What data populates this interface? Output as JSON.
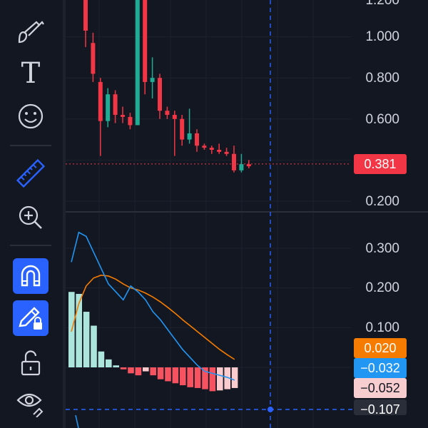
{
  "toolbar": {
    "tools": [
      {
        "name": "brush-tool",
        "icon": "brush-icon",
        "active": false
      },
      {
        "name": "text-tool",
        "icon": "text-icon",
        "active": false
      },
      {
        "name": "emoji-tool",
        "icon": "emoji-icon",
        "active": false
      },
      {
        "name": "measure-tool",
        "icon": "ruler-icon",
        "active": false
      },
      {
        "name": "zoom-tool",
        "icon": "zoom-in-icon",
        "active": false
      },
      {
        "name": "magnet-mode",
        "icon": "magnet-icon",
        "active": true
      },
      {
        "name": "lock-drawings",
        "icon": "pencil-lock-icon",
        "active": true
      },
      {
        "name": "unlock-all",
        "icon": "unlock-icon",
        "active": false
      },
      {
        "name": "hide-drawings",
        "icon": "eye-icon",
        "active": false
      }
    ],
    "text_glyph": "T"
  },
  "price_axis": {
    "labels": [
      "1.200",
      "1.000",
      "0.800",
      "0.600",
      "0.200"
    ],
    "current_price": "0.381"
  },
  "macd_axis": {
    "labels": [
      "0.300",
      "0.200",
      "0.100"
    ],
    "tags": [
      {
        "value": "0.020",
        "color": "#f57c00",
        "text_color": "#ffffff"
      },
      {
        "value": "−0.032",
        "color": "#2196f3",
        "text_color": "#ffffff"
      },
      {
        "value": "−0.052",
        "color": "#f8cdd0",
        "text_color": "#131722"
      },
      {
        "value": "−0.107",
        "color": "#2a2e39",
        "text_color": "#ffffff"
      }
    ]
  },
  "colors": {
    "up": "#22ab94",
    "down": "#f23645",
    "macd_line": "#2196f3",
    "signal_line": "#f57c00",
    "crosshair": "#2962ff",
    "price_line": "#f23645"
  },
  "chart_data": [
    {
      "type": "candlestick",
      "y_unit": "price",
      "ylim": [
        0.2,
        1.2
      ],
      "candles": [
        {
          "o": 1.2,
          "h": 1.22,
          "c": 1.03,
          "l": 0.95
        },
        {
          "o": 0.97,
          "h": 1.02,
          "c": 0.82,
          "l": 0.78
        },
        {
          "o": 0.78,
          "h": 0.8,
          "c": 0.59,
          "l": 0.42
        },
        {
          "o": 0.59,
          "h": 0.75,
          "c": 0.72,
          "l": 0.56
        },
        {
          "o": 0.72,
          "h": 0.74,
          "c": 0.62,
          "l": 0.58
        },
        {
          "o": 0.62,
          "h": 0.66,
          "c": 0.61,
          "l": 0.58
        },
        {
          "o": 0.61,
          "h": 0.63,
          "c": 0.57,
          "l": 0.55
        },
        {
          "o": 0.57,
          "h": 1.23,
          "c": 1.2,
          "l": 0.57
        },
        {
          "o": 1.2,
          "h": 1.24,
          "c": 0.78,
          "l": 0.72
        },
        {
          "o": 0.78,
          "h": 0.9,
          "c": 0.8,
          "l": 0.7
        },
        {
          "o": 0.8,
          "h": 0.82,
          "c": 0.64,
          "l": 0.6
        },
        {
          "o": 0.64,
          "h": 0.66,
          "c": 0.62,
          "l": 0.6
        },
        {
          "o": 0.62,
          "h": 0.64,
          "c": 0.6,
          "l": 0.42
        },
        {
          "o": 0.6,
          "h": 0.62,
          "c": 0.5,
          "l": 0.47
        },
        {
          "o": 0.5,
          "h": 0.65,
          "c": 0.53,
          "l": 0.48
        },
        {
          "o": 0.53,
          "h": 0.55,
          "c": 0.47,
          "l": 0.44
        },
        {
          "o": 0.47,
          "h": 0.48,
          "c": 0.46,
          "l": 0.45
        },
        {
          "o": 0.46,
          "h": 0.47,
          "c": 0.45,
          "l": 0.43
        },
        {
          "o": 0.45,
          "h": 0.48,
          "c": 0.44,
          "l": 0.43
        },
        {
          "o": 0.44,
          "h": 0.46,
          "c": 0.43,
          "l": 0.42
        },
        {
          "o": 0.43,
          "h": 0.47,
          "c": 0.35,
          "l": 0.34
        },
        {
          "o": 0.35,
          "h": 0.43,
          "c": 0.38,
          "l": 0.34
        },
        {
          "o": 0.38,
          "h": 0.4,
          "c": 0.37,
          "l": 0.36
        }
      ],
      "current_price": 0.381
    },
    {
      "type": "bar+line",
      "y_unit": "MACD",
      "ylim": [
        -0.11,
        0.35
      ],
      "histogram": [
        0.19,
        0.185,
        0.14,
        0.105,
        0.04,
        0.02,
        0.005,
        -0.005,
        -0.015,
        -0.02,
        -0.01,
        -0.02,
        -0.03,
        -0.035,
        -0.04,
        -0.045,
        -0.05,
        -0.052,
        -0.055,
        -0.06,
        -0.058,
        -0.055,
        -0.052
      ],
      "macd_line": [
        0.265,
        0.34,
        0.33,
        0.29,
        0.25,
        0.21,
        0.19,
        0.17,
        0.205,
        0.19,
        0.17,
        0.14,
        0.12,
        0.095,
        0.07,
        0.045,
        0.025,
        0.005,
        -0.01,
        -0.015,
        -0.02,
        -0.025,
        -0.032
      ],
      "signal_line": [
        0.09,
        0.16,
        0.205,
        0.225,
        0.232,
        0.23,
        0.222,
        0.21,
        0.2,
        0.195,
        0.187,
        0.177,
        0.165,
        0.151,
        0.136,
        0.12,
        0.105,
        0.09,
        0.075,
        0.06,
        0.045,
        0.032,
        0.02
      ]
    }
  ]
}
